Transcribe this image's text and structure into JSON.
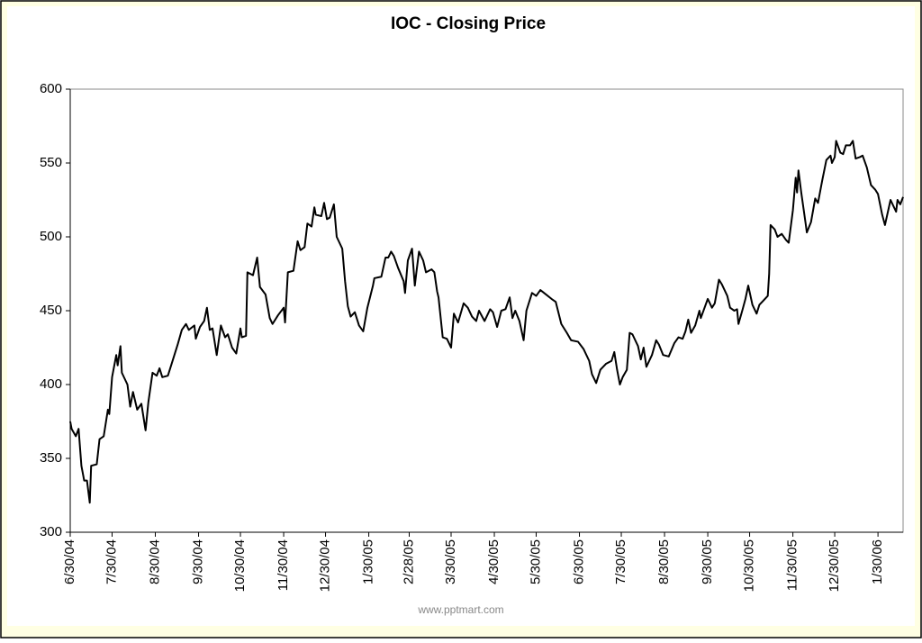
{
  "chart_data": {
    "type": "line",
    "title": "IOC - Closing Price",
    "watermark": "www.pptmart.com",
    "x": [
      "6/30/04",
      "7/1/04",
      "7/4/04",
      "7/6/04",
      "7/8/04",
      "7/10/04",
      "7/12/04",
      "7/14/04",
      "7/15/04",
      "7/19/04",
      "7/21/04",
      "7/24/04",
      "7/27/04",
      "7/28/04",
      "7/30/04",
      "8/2/04",
      "8/3/04",
      "8/5/04",
      "8/6/04",
      "8/10/04",
      "8/12/04",
      "8/14/04",
      "8/17/04",
      "8/20/04",
      "8/23/04",
      "8/25/04",
      "8/28/04",
      "8/31/04",
      "9/2/04",
      "9/4/04",
      "9/8/04",
      "9/11/04",
      "9/15/04",
      "9/18/04",
      "9/21/04",
      "9/23/04",
      "9/27/04",
      "9/28/04",
      "10/1/04",
      "10/4/04",
      "10/6/04",
      "10/8/04",
      "10/10/04",
      "10/13/04",
      "10/16/04",
      "10/19/04",
      "10/21/04",
      "10/24/04",
      "10/27/04",
      "10/30/04",
      "10/31/04",
      "11/3/04",
      "11/4/04",
      "11/8/04",
      "11/11/04",
      "11/13/04",
      "11/17/04",
      "11/20/04",
      "11/22/04",
      "11/26/04",
      "11/30/04",
      "12/1/04",
      "12/3/04",
      "12/7/04",
      "12/10/04",
      "12/12/04",
      "12/15/04",
      "12/17/04",
      "12/20/04",
      "12/22/04",
      "12/23/04",
      "12/27/04",
      "12/29/04",
      "12/31/04",
      "1/2/05",
      "1/5/05",
      "1/7/05",
      "1/11/05",
      "1/13/05",
      "1/15/05",
      "1/17/05",
      "1/20/05",
      "1/23/05",
      "1/26/05",
      "1/29/05",
      "2/2/05",
      "2/3/05",
      "2/8/05",
      "2/11/05",
      "2/13/05",
      "2/15/05",
      "2/17/05",
      "2/20/05",
      "2/24/05",
      "2/25/05",
      "2/27/05",
      "3/2/05",
      "3/4/05",
      "3/5/05",
      "3/7/05",
      "3/10/05",
      "3/12/05",
      "3/16/05",
      "3/18/05",
      "3/20/05",
      "3/21/05",
      "3/24/05",
      "3/27/05",
      "3/30/05",
      "4/1/05",
      "4/4/05",
      "4/8/05",
      "4/11/05",
      "4/14/05",
      "4/17/05",
      "4/19/05",
      "4/23/05",
      "4/27/05",
      "4/29/05",
      "5/2/05",
      "5/5/05",
      "5/8/05",
      "5/11/05",
      "5/13/05",
      "5/15/05",
      "5/18/05",
      "5/21/05",
      "5/23/05",
      "5/27/05",
      "5/30/05",
      "6/2/05",
      "6/6/05",
      "6/10/05",
      "6/13/05",
      "6/17/05",
      "6/21/05",
      "6/24/05",
      "6/29/05",
      "7/3/05",
      "7/7/05",
      "7/9/05",
      "7/12/05",
      "7/15/05",
      "7/19/05",
      "7/23/05",
      "7/25/05",
      "7/27/05",
      "7/29/05",
      "7/31/05",
      "8/3/05",
      "8/5/05",
      "8/7/05",
      "8/11/05",
      "8/13/05",
      "8/15/05",
      "8/17/05",
      "8/21/05",
      "8/24/05",
      "8/26/05",
      "8/29/05",
      "9/2/05",
      "9/6/05",
      "9/9/05",
      "9/12/05",
      "9/14/05",
      "9/16/05",
      "9/18/05",
      "9/21/05",
      "9/24/05",
      "9/25/05",
      "9/30/05",
      "10/3/05",
      "10/5/05",
      "10/8/05",
      "10/10/05",
      "10/14/05",
      "10/16/05",
      "10/19/05",
      "10/21/05",
      "10/22/05",
      "10/25/05",
      "10/27/05",
      "10/29/05",
      "11/1/05",
      "11/4/05",
      "11/6/05",
      "11/9/05",
      "11/12/05",
      "11/13/05",
      "11/14/05",
      "11/17/05",
      "11/19/05",
      "11/22/05",
      "11/25/05",
      "11/27/05",
      "11/30/05",
      "12/2/05",
      "12/3/05",
      "12/4/05",
      "12/6/05",
      "12/9/05",
      "12/10/05",
      "12/13/05",
      "12/16/05",
      "12/18/05",
      "12/21/05",
      "12/24/05",
      "12/27/05",
      "12/28/05",
      "12/30/05",
      "12/31/05",
      "1/3/06",
      "1/5/06",
      "1/7/06",
      "1/10/06",
      "1/12/06",
      "1/14/06",
      "1/17/06",
      "1/19/06",
      "1/22/06",
      "1/25/06",
      "1/28/06",
      "1/30/06",
      "2/2/06",
      "2/4/06",
      "2/8/06",
      "2/10/06",
      "2/12/06",
      "2/13/06",
      "2/15/06",
      "2/17/06"
    ],
    "series": [
      {
        "name": "IOC",
        "color": "#000000",
        "values": [
          375,
          370,
          365,
          370,
          345,
          335,
          335,
          320,
          345,
          346,
          363,
          365,
          383,
          380,
          405,
          420,
          413,
          426,
          408,
          400,
          385,
          395,
          383,
          387,
          369,
          388,
          408,
          406,
          411,
          405,
          406,
          415,
          427,
          437,
          441,
          437,
          440,
          431,
          439,
          443,
          452,
          437,
          438,
          420,
          440,
          432,
          434,
          425,
          421,
          438,
          432,
          433,
          476,
          474,
          486,
          466,
          461,
          445,
          441,
          447,
          452,
          442,
          476,
          477,
          497,
          491,
          493,
          509,
          507,
          520,
          515,
          514,
          523,
          512,
          513,
          522,
          500,
          492,
          470,
          453,
          446,
          449,
          440,
          436,
          452,
          467,
          472,
          473,
          486,
          486,
          490,
          487,
          479,
          470,
          462,
          484,
          492,
          467,
          475,
          490,
          484,
          476,
          478,
          476,
          463,
          459,
          432,
          431,
          425,
          448,
          442,
          455,
          452,
          446,
          443,
          450,
          443,
          451,
          449,
          439,
          450,
          451,
          459,
          445,
          450,
          443,
          430,
          450,
          462,
          460,
          464,
          461,
          458,
          456,
          441,
          435,
          430,
          429,
          424,
          416,
          407,
          401,
          410,
          414,
          416,
          422,
          410,
          400,
          405,
          410,
          435,
          434,
          426,
          417,
          425,
          412,
          420,
          430,
          427,
          420,
          419,
          428,
          432,
          431,
          436,
          444,
          435,
          440,
          450,
          445,
          458,
          452,
          455,
          471,
          468,
          460,
          452,
          450,
          451,
          441,
          451,
          458,
          467,
          454,
          448,
          454,
          457,
          460,
          475,
          508,
          505,
          500,
          502,
          498,
          496,
          518,
          540,
          530,
          545,
          530,
          510,
          503,
          510,
          526,
          523,
          538,
          552,
          555,
          550,
          554,
          565,
          557,
          556,
          562,
          562,
          565,
          553,
          554,
          555,
          547,
          535,
          532,
          529,
          515,
          508,
          525,
          521,
          517,
          525,
          522,
          527
        ]
      }
    ],
    "xlim": [
      "6/30/04",
      "2/17/06"
    ],
    "xticks": [
      "6/30/04",
      "7/30/04",
      "8/30/04",
      "9/30/04",
      "10/30/04",
      "11/30/04",
      "12/30/04",
      "1/30/05",
      "2/28/05",
      "3/30/05",
      "4/30/05",
      "5/30/05",
      "6/30/05",
      "7/30/05",
      "8/30/05",
      "9/30/05",
      "10/30/05",
      "11/30/05",
      "12/30/05",
      "1/30/06"
    ],
    "ylim": [
      300,
      600
    ],
    "yticks": [
      300,
      350,
      400,
      450,
      500,
      550,
      600
    ],
    "grid": false
  }
}
